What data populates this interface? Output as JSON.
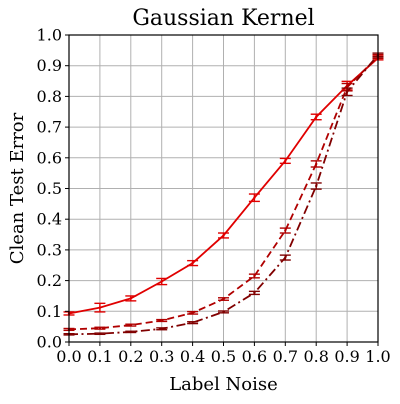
{
  "chart_data": {
    "type": "line",
    "title": "Gaussian Kernel",
    "xlabel": "Label Noise",
    "ylabel": "Clean Test Error",
    "xlim": [
      0.0,
      1.0
    ],
    "ylim": [
      0.0,
      1.0
    ],
    "xticks": [
      "0.0",
      "0.1",
      "0.2",
      "0.3",
      "0.4",
      "0.5",
      "0.6",
      "0.7",
      "0.8",
      "0.9",
      "1.0"
    ],
    "yticks": [
      "0.0",
      "0.1",
      "0.2",
      "0.3",
      "0.4",
      "0.5",
      "0.6",
      "0.7",
      "0.8",
      "0.9",
      "1.0"
    ],
    "grid": true,
    "legend": "none",
    "x": [
      0.0,
      0.1,
      0.2,
      0.3,
      0.4,
      0.5,
      0.6,
      0.7,
      0.8,
      0.9,
      1.0
    ],
    "series": [
      {
        "style": "solid",
        "color": "#e00000",
        "values": [
          0.093,
          0.112,
          0.142,
          0.197,
          0.257,
          0.347,
          0.47,
          0.59,
          0.733,
          0.835,
          0.925
        ],
        "errors": [
          0.005,
          0.014,
          0.008,
          0.01,
          0.008,
          0.008,
          0.012,
          0.008,
          0.009,
          0.014,
          0.006
        ]
      },
      {
        "style": "dashed",
        "color": "#b00000",
        "values": [
          0.041,
          0.045,
          0.055,
          0.07,
          0.095,
          0.14,
          0.215,
          0.363,
          0.58,
          0.83,
          0.93
        ],
        "errors": [
          0.003,
          0.003,
          0.003,
          0.003,
          0.004,
          0.004,
          0.006,
          0.008,
          0.01,
          0.012,
          0.006
        ]
      },
      {
        "style": "dashdot",
        "color": "#800000",
        "values": [
          0.025,
          0.027,
          0.033,
          0.043,
          0.063,
          0.098,
          0.16,
          0.275,
          0.508,
          0.815,
          0.935
        ],
        "errors": [
          0.002,
          0.002,
          0.002,
          0.003,
          0.003,
          0.003,
          0.005,
          0.008,
          0.01,
          0.012,
          0.006
        ]
      }
    ]
  }
}
